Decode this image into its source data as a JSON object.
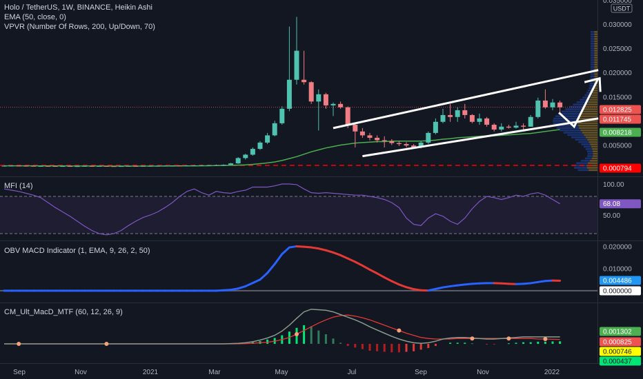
{
  "header": {
    "title": "Holo / TetherUS, 1W, BINANCE, Heikin Ashi",
    "ema": "EMA (50, close, 0)",
    "vpvr": "VPVR (Number Of Rows, 200, Up/Down, 70)",
    "currency": "USDT"
  },
  "colors": {
    "background": "#131722",
    "up": "#26a69a",
    "down": "#ef5350",
    "up_candle": "#4fc2b0",
    "down_candle": "#f07c84",
    "ema": "#4caf50",
    "mfi": "#7e57c2",
    "obv_up": "#2962ff",
    "obv_down": "#e53935"
  },
  "panes": {
    "mfi_title": "MFI (14)",
    "obv_title": "OBV MACD Indicator (1, EMA, 9, 26, 2, 50)",
    "cm_title": "CM_Ult_MacD_MTF (60, 12, 26, 9)"
  },
  "price_axis": {
    "ticks": [
      "0.035000",
      "0.030000",
      "0.025000",
      "0.020000",
      "0.015000",
      "0.005000"
    ],
    "tags": [
      {
        "label": "0.012825",
        "value": 0.012825,
        "bg": "#ef5350",
        "fg": "#ffffff"
      },
      {
        "label": "0.011745",
        "value": 0.011745,
        "bg": "#ef5350",
        "fg": "#ffffff"
      },
      {
        "label": "0.008218",
        "value": 0.008218,
        "bg": "#4caf50",
        "fg": "#ffffff"
      },
      {
        "label": "0.000794",
        "value": 0.000794,
        "bg": "#ff0000",
        "fg": "#ffffff"
      }
    ]
  },
  "mfi_axis": {
    "ticks": [
      "100.00",
      "50.00"
    ],
    "tag": {
      "label": "68.08",
      "value": 68.08,
      "bg": "#7e57c2",
      "fg": "#ffffff"
    }
  },
  "obv_axis": {
    "ticks": [
      "0.020000",
      "0.010000"
    ],
    "tags": [
      {
        "label": "0.004486",
        "value": 0.004486,
        "bg": "#2196f3",
        "fg": "#ffffff"
      },
      {
        "label": "0.000000",
        "value": 0,
        "bg": "#ffffff",
        "fg": "#131722"
      }
    ]
  },
  "cm_axis": {
    "tags": [
      {
        "label": "0.001302",
        "bg": "#4caf50",
        "fg": "#ffffff"
      },
      {
        "label": "0.000825",
        "bg": "#ef5350",
        "fg": "#ffffff"
      },
      {
        "label": "0.000746",
        "bg": "#ffff00",
        "fg": "#131722"
      },
      {
        "label": "0.000437",
        "bg": "#00e676",
        "fg": "#131722"
      }
    ]
  },
  "x_axis": {
    "labels": [
      "Sep",
      "Nov",
      "2021",
      "Mar",
      "May",
      "Jul",
      "Sep",
      "Nov",
      "2022"
    ]
  },
  "chart_data": {
    "type": "candlestick",
    "title": "Holo / TetherUS, 1W, BINANCE, Heikin Ashi",
    "ylim": [
      0,
      0.035
    ],
    "x_labels": [
      "Sep",
      "Nov",
      "2021",
      "Mar",
      "May",
      "Jul",
      "Sep",
      "Nov",
      "2022"
    ],
    "candles": [
      {
        "o": 0.0006,
        "h": 0.00075,
        "l": 0.00055,
        "c": 0.0007
      },
      {
        "o": 0.0007,
        "h": 0.0008,
        "l": 0.00065,
        "c": 0.00072
      },
      {
        "o": 0.00072,
        "h": 0.0008,
        "l": 0.00065,
        "c": 0.0007
      },
      {
        "o": 0.0007,
        "h": 0.00078,
        "l": 0.00062,
        "c": 0.00068
      },
      {
        "o": 0.00068,
        "h": 0.00075,
        "l": 0.0006,
        "c": 0.00065
      },
      {
        "o": 0.00065,
        "h": 0.00072,
        "l": 0.0006,
        "c": 0.00066
      },
      {
        "o": 0.00066,
        "h": 0.00072,
        "l": 0.0006,
        "c": 0.00065
      },
      {
        "o": 0.00065,
        "h": 0.0007,
        "l": 0.00058,
        "c": 0.00062
      },
      {
        "o": 0.00062,
        "h": 0.0007,
        "l": 0.00058,
        "c": 0.00064
      },
      {
        "o": 0.00064,
        "h": 0.0007,
        "l": 0.00058,
        "c": 0.0006
      },
      {
        "o": 0.0006,
        "h": 0.00068,
        "l": 0.00055,
        "c": 0.00062
      },
      {
        "o": 0.00062,
        "h": 0.0007,
        "l": 0.00058,
        "c": 0.00066
      },
      {
        "o": 0.00066,
        "h": 0.00072,
        "l": 0.0006,
        "c": 0.00064
      },
      {
        "o": 0.00064,
        "h": 0.0007,
        "l": 0.0006,
        "c": 0.00065
      },
      {
        "o": 0.00065,
        "h": 0.0007,
        "l": 0.0006,
        "c": 0.00062
      },
      {
        "o": 0.00062,
        "h": 0.00068,
        "l": 0.00058,
        "c": 0.0006
      },
      {
        "o": 0.0006,
        "h": 0.00068,
        "l": 0.00055,
        "c": 0.00063
      },
      {
        "o": 0.00063,
        "h": 0.0007,
        "l": 0.0006,
        "c": 0.00066
      },
      {
        "o": 0.00066,
        "h": 0.00072,
        "l": 0.0006,
        "c": 0.00064
      },
      {
        "o": 0.00064,
        "h": 0.0007,
        "l": 0.0006,
        "c": 0.00066
      },
      {
        "o": 0.00066,
        "h": 0.00075,
        "l": 0.0006,
        "c": 0.00068
      },
      {
        "o": 0.00068,
        "h": 0.00075,
        "l": 0.00062,
        "c": 0.0007
      },
      {
        "o": 0.0007,
        "h": 0.00078,
        "l": 0.00065,
        "c": 0.00072
      },
      {
        "o": 0.00072,
        "h": 0.0008,
        "l": 0.00068,
        "c": 0.00075
      },
      {
        "o": 0.00075,
        "h": 0.00082,
        "l": 0.0007,
        "c": 0.00073
      },
      {
        "o": 0.00073,
        "h": 0.0008,
        "l": 0.00068,
        "c": 0.00076
      },
      {
        "o": 0.00076,
        "h": 0.00085,
        "l": 0.0007,
        "c": 0.00078
      },
      {
        "o": 0.00078,
        "h": 0.00088,
        "l": 0.00072,
        "c": 0.0008
      },
      {
        "o": 0.0008,
        "h": 0.0009,
        "l": 0.00075,
        "c": 0.00082
      },
      {
        "o": 0.00082,
        "h": 0.00095,
        "l": 0.00078,
        "c": 0.00085
      },
      {
        "o": 0.00085,
        "h": 0.001,
        "l": 0.0008,
        "c": 0.0009
      },
      {
        "o": 0.0009,
        "h": 0.0013,
        "l": 0.00085,
        "c": 0.0012
      },
      {
        "o": 0.0012,
        "h": 0.0025,
        "l": 0.0011,
        "c": 0.0023
      },
      {
        "o": 0.0023,
        "h": 0.0032,
        "l": 0.002,
        "c": 0.003
      },
      {
        "o": 0.003,
        "h": 0.0045,
        "l": 0.0028,
        "c": 0.0042
      },
      {
        "o": 0.0042,
        "h": 0.0058,
        "l": 0.004,
        "c": 0.0055
      },
      {
        "o": 0.0055,
        "h": 0.0075,
        "l": 0.0052,
        "c": 0.007
      },
      {
        "o": 0.007,
        "h": 0.01,
        "l": 0.0068,
        "c": 0.0095
      },
      {
        "o": 0.0095,
        "h": 0.013,
        "l": 0.0092,
        "c": 0.0125
      },
      {
        "o": 0.0125,
        "h": 0.0295,
        "l": 0.012,
        "c": 0.0185
      },
      {
        "o": 0.0185,
        "h": 0.0315,
        "l": 0.0175,
        "c": 0.0245
      },
      {
        "o": 0.0185,
        "h": 0.0245,
        "l": 0.0175,
        "c": 0.018
      },
      {
        "o": 0.018,
        "h": 0.0182,
        "l": 0.0135,
        "c": 0.014
      },
      {
        "o": 0.014,
        "h": 0.0165,
        "l": 0.008,
        "c": 0.0155
      },
      {
        "o": 0.0155,
        "h": 0.0158,
        "l": 0.0125,
        "c": 0.0132
      },
      {
        "o": 0.0132,
        "h": 0.0138,
        "l": 0.011,
        "c": 0.0135
      },
      {
        "o": 0.0135,
        "h": 0.014,
        "l": 0.0125,
        "c": 0.0128
      },
      {
        "o": 0.0128,
        "h": 0.013,
        "l": 0.0085,
        "c": 0.0092
      },
      {
        "o": 0.0092,
        "h": 0.0095,
        "l": 0.0045,
        "c": 0.0078
      },
      {
        "o": 0.0078,
        "h": 0.0085,
        "l": 0.0065,
        "c": 0.007
      },
      {
        "o": 0.007,
        "h": 0.0075,
        "l": 0.006,
        "c": 0.0065
      },
      {
        "o": 0.0065,
        "h": 0.007,
        "l": 0.0055,
        "c": 0.006
      },
      {
        "o": 0.006,
        "h": 0.0068,
        "l": 0.0045,
        "c": 0.0058
      },
      {
        "o": 0.0058,
        "h": 0.0062,
        "l": 0.005,
        "c": 0.0054
      },
      {
        "o": 0.0054,
        "h": 0.0058,
        "l": 0.0048,
        "c": 0.0052
      },
      {
        "o": 0.0052,
        "h": 0.0056,
        "l": 0.0045,
        "c": 0.0049
      },
      {
        "o": 0.0049,
        "h": 0.0052,
        "l": 0.0042,
        "c": 0.0045
      },
      {
        "o": 0.0045,
        "h": 0.0058,
        "l": 0.0043,
        "c": 0.0055
      },
      {
        "o": 0.0055,
        "h": 0.0078,
        "l": 0.0052,
        "c": 0.0075
      },
      {
        "o": 0.0075,
        "h": 0.0105,
        "l": 0.0072,
        "c": 0.0098
      },
      {
        "o": 0.0098,
        "h": 0.0125,
        "l": 0.0095,
        "c": 0.0112
      },
      {
        "o": 0.0112,
        "h": 0.0135,
        "l": 0.0098,
        "c": 0.0108
      },
      {
        "o": 0.0108,
        "h": 0.0128,
        "l": 0.0098,
        "c": 0.0122
      },
      {
        "o": 0.0122,
        "h": 0.0135,
        "l": 0.0105,
        "c": 0.0112
      },
      {
        "o": 0.0112,
        "h": 0.0114,
        "l": 0.0095,
        "c": 0.0098
      },
      {
        "o": 0.0098,
        "h": 0.0115,
        "l": 0.0092,
        "c": 0.0105
      },
      {
        "o": 0.0105,
        "h": 0.0108,
        "l": 0.0088,
        "c": 0.0092
      },
      {
        "o": 0.0092,
        "h": 0.0095,
        "l": 0.0078,
        "c": 0.0082
      },
      {
        "o": 0.0082,
        "h": 0.0095,
        "l": 0.0078,
        "c": 0.0088
      },
      {
        "o": 0.0088,
        "h": 0.0092,
        "l": 0.0084,
        "c": 0.0086
      },
      {
        "o": 0.0086,
        "h": 0.0098,
        "l": 0.0084,
        "c": 0.009
      },
      {
        "o": 0.009,
        "h": 0.0095,
        "l": 0.0082,
        "c": 0.0088
      },
      {
        "o": 0.0088,
        "h": 0.0112,
        "l": 0.0088,
        "c": 0.0108
      },
      {
        "o": 0.0108,
        "h": 0.0148,
        "l": 0.0105,
        "c": 0.0142
      },
      {
        "o": 0.0142,
        "h": 0.0165,
        "l": 0.0125,
        "c": 0.0128
      },
      {
        "o": 0.0128,
        "h": 0.0145,
        "l": 0.0122,
        "c": 0.0138
      },
      {
        "o": 0.0138,
        "h": 0.0142,
        "l": 0.0115,
        "c": 0.0128
      }
    ],
    "ema_50": [
      0.0007,
      0.0007,
      0.0007,
      0.0007,
      0.0007,
      0.00068,
      0.00068,
      0.00067,
      0.00067,
      0.00066,
      0.00066,
      0.00066,
      0.00066,
      0.00066,
      0.00065,
      0.00065,
      0.00065,
      0.00065,
      0.00065,
      0.00065,
      0.00065,
      0.00065,
      0.00066,
      0.00066,
      0.00067,
      0.00068,
      0.00069,
      0.0007,
      0.00072,
      0.00074,
      0.00076,
      0.0008,
      0.00085,
      0.0009,
      0.001,
      0.00115,
      0.0013,
      0.0015,
      0.0018,
      0.0022,
      0.0026,
      0.0031,
      0.0036,
      0.004,
      0.0044,
      0.0047,
      0.005,
      0.0052,
      0.0054,
      0.0055,
      0.0056,
      0.0057,
      0.0057,
      0.0058,
      0.0058,
      0.0058,
      0.0058,
      0.0058,
      0.0059,
      0.006,
      0.0062,
      0.0063,
      0.0065,
      0.0066,
      0.0067,
      0.0068,
      0.0069,
      0.0069,
      0.007,
      0.0071,
      0.0072,
      0.0073,
      0.0074,
      0.0076,
      0.0078,
      0.008,
      0.0082
    ],
    "mfi": {
      "ylim": [
        10,
        110
      ],
      "values": [
        92,
        90,
        88,
        85,
        82,
        78,
        70,
        62,
        55,
        48,
        40,
        32,
        25,
        20,
        18,
        20,
        25,
        33,
        40,
        46,
        50,
        55,
        62,
        70,
        80,
        88,
        92,
        86,
        82,
        88,
        86,
        85,
        88,
        90,
        95,
        95,
        95,
        97,
        100,
        100,
        99,
        92,
        86,
        85,
        86,
        85,
        84,
        83,
        82,
        82,
        80,
        78,
        75,
        70,
        62,
        45,
        35,
        33,
        45,
        52,
        48,
        40,
        35,
        45,
        60,
        72,
        80,
        78,
        75,
        78,
        82,
        80,
        84,
        86,
        82,
        75,
        68.08
      ]
    },
    "obv_macd": {
      "ylim": [
        -0.005,
        0.022
      ],
      "values": [
        0,
        0,
        0,
        0,
        0,
        0,
        0,
        0,
        0,
        0,
        0,
        0,
        0,
        0,
        0,
        0,
        0,
        0,
        0,
        0,
        0,
        0,
        0,
        0,
        0,
        0,
        0,
        0,
        0,
        0,
        0.0002,
        0.0004,
        0.001,
        0.002,
        0.0035,
        0.005,
        0.008,
        0.012,
        0.0165,
        0.0195,
        0.02,
        0.0198,
        0.0195,
        0.019,
        0.0182,
        0.0172,
        0.016,
        0.0145,
        0.013,
        0.0113,
        0.0095,
        0.0078,
        0.006,
        0.0043,
        0.0028,
        0.0016,
        0.0007,
        0.0002,
        0.0001,
        0.0008,
        0.0015,
        0.002,
        0.0024,
        0.0028,
        0.0031,
        0.0033,
        0.0034,
        0.0034,
        0.0033,
        0.0031,
        0.003,
        0.0031,
        0.0034,
        0.0039,
        0.0044,
        0.0046,
        0.0045
      ]
    },
    "cm_macd": {
      "ylim": [
        -0.0035,
        0.0075
      ],
      "macd": [
        0,
        0,
        0,
        0,
        0,
        0,
        0,
        0,
        0,
        0,
        0,
        0,
        0,
        0,
        0,
        0,
        0,
        0,
        0,
        0,
        0,
        0,
        0,
        0,
        0,
        0,
        0,
        0,
        0,
        0,
        0,
        5e-05,
        0.0001,
        0.0002,
        0.0004,
        0.0007,
        0.0011,
        0.0016,
        0.0024,
        0.0035,
        0.0048,
        0.006,
        0.0065,
        0.0064,
        0.0063,
        0.006,
        0.0055,
        0.005,
        0.0045,
        0.0039,
        0.0032,
        0.0026,
        0.002,
        0.0014,
        0.0009,
        0.0005,
        0.0002,
        0.0001,
        0.0002,
        0.0005,
        0.0009,
        0.0011,
        0.0012,
        0.0012,
        0.0011,
        0.001,
        0.0009,
        0.0009,
        0.001,
        0.0011,
        0.0012,
        0.0013,
        0.0013,
        0.0013,
        0.0013,
        0.0013,
        0.0013
      ],
      "signal": [
        0,
        0,
        0,
        0,
        0,
        0,
        0,
        0,
        0,
        0,
        0,
        0,
        0,
        0,
        0,
        0,
        0,
        0,
        0,
        0,
        0,
        0,
        0,
        0,
        0,
        0,
        0,
        0,
        0,
        0,
        0,
        0,
        0,
        5e-05,
        0.0001,
        0.0002,
        0.0003,
        0.0005,
        0.0008,
        0.0012,
        0.0018,
        0.0025,
        0.0032,
        0.0039,
        0.0045,
        0.005,
        0.0053,
        0.0054,
        0.0052,
        0.0049,
        0.0045,
        0.004,
        0.0035,
        0.003,
        0.0025,
        0.002,
        0.0016,
        0.0012,
        0.001,
        0.0009,
        0.0009,
        0.0009,
        0.001,
        0.001,
        0.001,
        0.001,
        0.001,
        0.001,
        0.001,
        0.001,
        0.001,
        0.001,
        0.001,
        0.0009,
        0.0009,
        0.00085,
        0.000825
      ],
      "hist": [
        0,
        0,
        0,
        0,
        0,
        0,
        0,
        0,
        0,
        0,
        0,
        0,
        0,
        0,
        0,
        0,
        0,
        0,
        0,
        0,
        0,
        0,
        0,
        0,
        0,
        0,
        0,
        0,
        0,
        0,
        0,
        5e-05,
        0.0001,
        0.00015,
        0.0003,
        0.0005,
        0.0008,
        0.0011,
        0.0016,
        0.0023,
        0.003,
        0.0035,
        0.0033,
        0.0025,
        0.0018,
        0.001,
        0.0002,
        -0.0004,
        -0.0007,
        -0.001,
        -0.0013,
        -0.0014,
        -0.0015,
        -0.0016,
        -0.0016,
        -0.0015,
        -0.0014,
        -0.0011,
        -0.0008,
        -0.0004,
        0,
        0.0002,
        0.0002,
        0.0002,
        0.0001,
        0,
        -0.0001,
        -0.0001,
        0,
        0.0001,
        0.0002,
        0.0003,
        0.0003,
        0.0004,
        0.0004,
        0.00045,
        0.00047
      ]
    }
  }
}
